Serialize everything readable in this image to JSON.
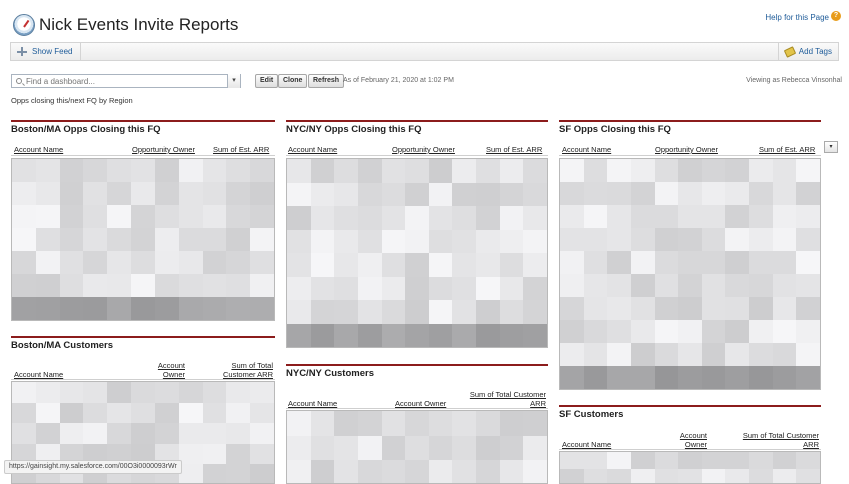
{
  "header": {
    "title": "Nick Events Invite Reports",
    "help_label": "Help for this Page",
    "help_icon": "?"
  },
  "feedbar": {
    "show_feed": "Show Feed",
    "add_tags": "Add Tags"
  },
  "toolbar": {
    "search_placeholder": "Find a dashboard...",
    "dropdown_glyph": "▾",
    "edit": "Edit",
    "clone": "Clone",
    "refresh": "Refresh",
    "as_of": "As of February 21, 2020 at 1:02 PM",
    "viewing_as": "Viewing as Rebecca Vinsonhal",
    "description": "Opps closing this/next FQ by Region"
  },
  "components": {
    "boston_opps": {
      "title": "Boston/MA Opps Closing this FQ",
      "col1": "Account Name",
      "col2": "Opportunity Owner",
      "col3": "Sum of Est. ARR"
    },
    "nyc_opps": {
      "title": "NYC/NY Opps Closing this FQ",
      "col1": "Account Name",
      "col2": "Opportunity Owner",
      "col3": "Sum of Est. ARR"
    },
    "sf_opps": {
      "title": "SF Opps Closing this FQ",
      "col1": "Account Name",
      "col2": "Opportunity Owner",
      "col3": "Sum of Est. ARR"
    },
    "boston_cust": {
      "title": "Boston/MA Customers",
      "col1": "Account Name",
      "col2": "Account Owner",
      "col3": "Sum of Total Customer ARR"
    },
    "nyc_cust": {
      "title": "NYC/NY Customers",
      "col1": "Account Name",
      "col2": "Account Owner",
      "col3": "Sum of Total Customer ARR"
    },
    "sf_cust": {
      "title": "SF Customers",
      "col1": "Account Name",
      "col2": "Account Owner",
      "col3": "Sum of Total Customer ARR"
    }
  },
  "column_menu_glyph": "▾",
  "status_url": "https://gainsight.my.salesforce.com/00O3i0000093rWr",
  "colors": {
    "rule": "#8c1c1c",
    "link": "#1f5c99",
    "blur_dark": "#9a9aa2"
  }
}
